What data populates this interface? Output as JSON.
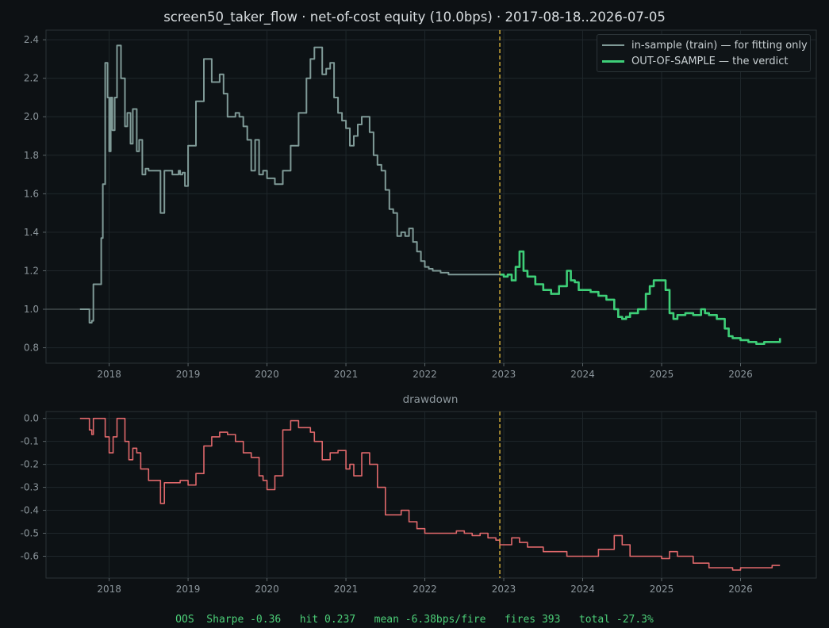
{
  "title": "screen50_taker_flow  ·  net-of-cost equity (10.0bps)  ·  2017-08-18..2026-07-05",
  "drawdown_title": "drawdown",
  "legend": {
    "insample": "in-sample (train) — for fitting only",
    "oos": "OUT-OF-SAMPLE — the verdict"
  },
  "footer": "OOS  Sharpe -0.36   hit 0.237   mean -6.38bps/fire   fires 393   total -27.3%",
  "colors": {
    "background": "#0d1114",
    "insample": "#7f9a97",
    "oos": "#3ecf78",
    "drawdown": "#e0686b",
    "split_line": "#c9a637",
    "baseline": "#5b6668",
    "grid": "#1f272b",
    "axis_text": "#8c969c"
  },
  "chart_data": [
    {
      "type": "line",
      "title": "screen50_taker_flow  ·  net-of-cost equity (10.0bps)  ·  2017-08-18..2026-07-05",
      "x_ticks": [
        "2018",
        "2019",
        "2020",
        "2021",
        "2022",
        "2023",
        "2024",
        "2025",
        "2026"
      ],
      "y_ticks": [
        "0.8",
        "1.0",
        "1.2",
        "1.4",
        "1.6",
        "1.8",
        "2.0",
        "2.2",
        "2.4"
      ],
      "ylim": [
        0.72,
        2.45
      ],
      "xlim": [
        2017.2,
        2026.96
      ],
      "split_date": 2022.95,
      "baseline": 1.0,
      "legend_position": "top-right",
      "series": [
        {
          "name": "in-sample (train) — for fitting only",
          "x": [
            2017.63,
            2017.73,
            2017.75,
            2017.78,
            2017.8,
            2017.83,
            2017.9,
            2017.92,
            2017.95,
            2017.98,
            2018.0,
            2018.02,
            2018.04,
            2018.07,
            2018.1,
            2018.13,
            2018.15,
            2018.2,
            2018.23,
            2018.27,
            2018.3,
            2018.35,
            2018.38,
            2018.42,
            2018.46,
            2018.5,
            2018.55,
            2018.6,
            2018.65,
            2018.7,
            2018.8,
            2018.88,
            2018.9,
            2018.93,
            2018.96,
            2019.0,
            2019.1,
            2019.2,
            2019.3,
            2019.4,
            2019.45,
            2019.5,
            2019.6,
            2019.65,
            2019.7,
            2019.75,
            2019.8,
            2019.85,
            2019.9,
            2019.95,
            2020.0,
            2020.1,
            2020.2,
            2020.3,
            2020.4,
            2020.5,
            2020.55,
            2020.6,
            2020.7,
            2020.75,
            2020.8,
            2020.85,
            2020.9,
            2020.95,
            2021.0,
            2021.05,
            2021.1,
            2021.15,
            2021.2,
            2021.3,
            2021.35,
            2021.4,
            2021.45,
            2021.5,
            2021.55,
            2021.6,
            2021.65,
            2021.7,
            2021.75,
            2021.8,
            2021.85,
            2021.9,
            2021.95,
            2022.0,
            2022.05,
            2022.1,
            2022.15,
            2022.2,
            2022.25,
            2022.3,
            2022.35,
            2022.4,
            2022.5,
            2022.55,
            2022.6,
            2022.65,
            2022.7,
            2022.8,
            2022.9,
            2022.95
          ],
          "values": [
            1.0,
            1.0,
            0.93,
            0.94,
            1.13,
            1.13,
            1.37,
            1.65,
            2.28,
            2.1,
            1.82,
            2.1,
            1.93,
            2.1,
            2.37,
            2.37,
            2.2,
            1.95,
            2.02,
            1.86,
            2.04,
            1.82,
            1.88,
            1.7,
            1.73,
            1.72,
            1.72,
            1.72,
            1.5,
            1.72,
            1.7,
            1.72,
            1.7,
            1.71,
            1.64,
            1.85,
            2.08,
            2.3,
            2.18,
            2.22,
            2.12,
            2.0,
            2.02,
            2.0,
            1.95,
            1.88,
            1.72,
            1.88,
            1.7,
            1.72,
            1.68,
            1.65,
            1.72,
            1.85,
            2.02,
            2.2,
            2.3,
            2.36,
            2.22,
            2.25,
            2.28,
            2.1,
            2.02,
            1.98,
            1.94,
            1.85,
            1.9,
            1.96,
            2.0,
            1.92,
            1.8,
            1.75,
            1.72,
            1.62,
            1.52,
            1.5,
            1.38,
            1.4,
            1.38,
            1.42,
            1.35,
            1.3,
            1.25,
            1.22,
            1.21,
            1.2,
            1.2,
            1.19,
            1.19,
            1.18,
            1.18,
            1.18,
            1.18,
            1.18,
            1.18,
            1.18,
            1.18,
            1.18,
            1.18,
            1.18
          ]
        },
        {
          "name": "OUT-OF-SAMPLE — the verdict",
          "x": [
            2022.95,
            2023.0,
            2023.05,
            2023.1,
            2023.15,
            2023.2,
            2023.25,
            2023.3,
            2023.4,
            2023.5,
            2023.6,
            2023.7,
            2023.8,
            2023.85,
            2023.9,
            2023.95,
            2024.0,
            2024.1,
            2024.2,
            2024.3,
            2024.4,
            2024.45,
            2024.5,
            2024.55,
            2024.6,
            2024.7,
            2024.8,
            2024.85,
            2024.9,
            2025.0,
            2025.05,
            2025.1,
            2025.15,
            2025.2,
            2025.3,
            2025.4,
            2025.5,
            2025.55,
            2025.6,
            2025.7,
            2025.8,
            2025.85,
            2025.9,
            2026.0,
            2026.1,
            2026.2,
            2026.3,
            2026.4,
            2026.5
          ],
          "values": [
            1.18,
            1.17,
            1.18,
            1.15,
            1.22,
            1.3,
            1.2,
            1.17,
            1.13,
            1.1,
            1.08,
            1.12,
            1.2,
            1.15,
            1.14,
            1.1,
            1.1,
            1.09,
            1.07,
            1.05,
            1.0,
            0.96,
            0.95,
            0.96,
            0.98,
            1.0,
            1.08,
            1.12,
            1.15,
            1.15,
            1.1,
            0.98,
            0.95,
            0.97,
            0.98,
            0.97,
            1.0,
            0.98,
            0.97,
            0.95,
            0.9,
            0.86,
            0.85,
            0.84,
            0.83,
            0.82,
            0.83,
            0.83,
            0.85
          ]
        }
      ]
    },
    {
      "type": "line",
      "title": "drawdown",
      "x_ticks": [
        "2018",
        "2019",
        "2020",
        "2021",
        "2022",
        "2023",
        "2024",
        "2025",
        "2026"
      ],
      "y_ticks": [
        "0.0",
        "-0.1",
        "-0.2",
        "-0.3",
        "-0.4",
        "-0.5",
        "-0.6"
      ],
      "ylim": [
        -0.695,
        0.03
      ],
      "xlim": [
        2017.2,
        2026.96
      ],
      "split_date": 2022.95,
      "series": [
        {
          "name": "drawdown",
          "x": [
            2017.63,
            2017.73,
            2017.75,
            2017.78,
            2017.8,
            2017.9,
            2017.95,
            2018.0,
            2018.05,
            2018.1,
            2018.15,
            2018.2,
            2018.25,
            2018.3,
            2018.35,
            2018.4,
            2018.5,
            2018.6,
            2018.65,
            2018.7,
            2018.8,
            2018.9,
            2018.95,
            2019.0,
            2019.1,
            2019.2,
            2019.3,
            2019.4,
            2019.5,
            2019.6,
            2019.7,
            2019.8,
            2019.9,
            2019.95,
            2020.0,
            2020.1,
            2020.2,
            2020.3,
            2020.4,
            2020.5,
            2020.55,
            2020.6,
            2020.7,
            2020.8,
            2020.9,
            2021.0,
            2021.05,
            2021.1,
            2021.2,
            2021.3,
            2021.4,
            2021.5,
            2021.6,
            2021.7,
            2021.8,
            2021.9,
            2022.0,
            2022.1,
            2022.2,
            2022.3,
            2022.4,
            2022.5,
            2022.6,
            2022.7,
            2022.8,
            2022.9,
            2022.95,
            2023.1,
            2023.2,
            2023.3,
            2023.5,
            2023.8,
            2024.0,
            2024.2,
            2024.4,
            2024.5,
            2024.6,
            2024.8,
            2025.0,
            2025.1,
            2025.2,
            2025.4,
            2025.6,
            2025.8,
            2025.9,
            2026.0,
            2026.2,
            2026.4,
            2026.5
          ],
          "values": [
            0.0,
            0.0,
            -0.05,
            -0.07,
            0.0,
            0.0,
            -0.08,
            -0.15,
            -0.08,
            0.0,
            0.0,
            -0.1,
            -0.18,
            -0.13,
            -0.15,
            -0.22,
            -0.27,
            -0.27,
            -0.37,
            -0.28,
            -0.28,
            -0.27,
            -0.27,
            -0.29,
            -0.24,
            -0.12,
            -0.08,
            -0.06,
            -0.07,
            -0.1,
            -0.15,
            -0.17,
            -0.25,
            -0.27,
            -0.31,
            -0.25,
            -0.05,
            -0.01,
            -0.04,
            -0.04,
            -0.06,
            -0.1,
            -0.18,
            -0.15,
            -0.14,
            -0.22,
            -0.2,
            -0.25,
            -0.15,
            -0.2,
            -0.3,
            -0.42,
            -0.42,
            -0.4,
            -0.45,
            -0.48,
            -0.5,
            -0.5,
            -0.5,
            -0.5,
            -0.49,
            -0.5,
            -0.51,
            -0.5,
            -0.52,
            -0.53,
            -0.55,
            -0.52,
            -0.54,
            -0.56,
            -0.58,
            -0.6,
            -0.6,
            -0.57,
            -0.51,
            -0.55,
            -0.6,
            -0.6,
            -0.61,
            -0.58,
            -0.6,
            -0.63,
            -0.65,
            -0.65,
            -0.66,
            -0.65,
            -0.65,
            -0.64,
            -0.64
          ]
        }
      ]
    }
  ]
}
